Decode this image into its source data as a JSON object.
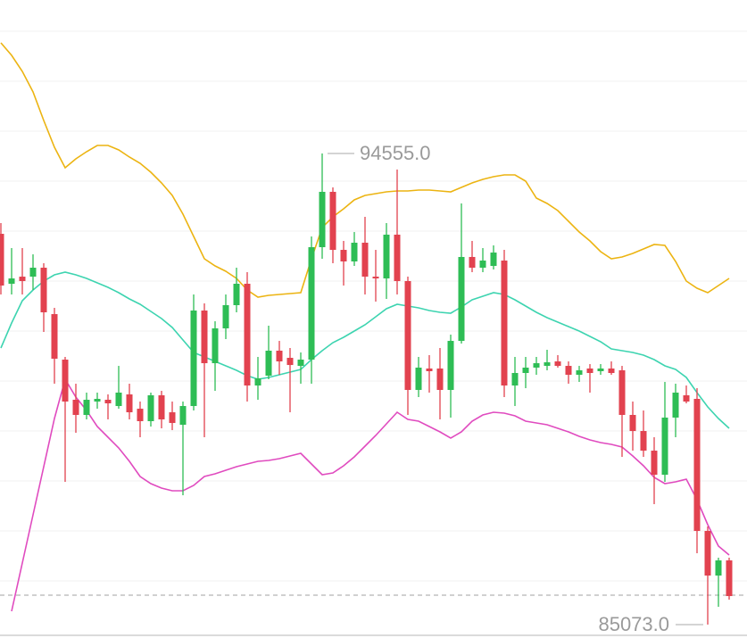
{
  "chart_data": {
    "type": "candlestick",
    "ylim": [
      84803,
      97644
    ],
    "up_color": "#2ebd55",
    "down_color": "#e2424f",
    "open": [
      92938,
      91933,
      92076,
      92076,
      92256,
      91322,
      90406,
      89598,
      89293,
      89562,
      89598,
      89472,
      89706,
      89418,
      89167,
      89688,
      89346,
      89095,
      89472,
      91394,
      90334,
      91035,
      91502,
      91933,
      89885,
      90083,
      90586,
      90442,
      90280,
      90406,
      92669,
      93783,
      92615,
      92382,
      92759,
      92076,
      92040,
      92921,
      91987,
      89796,
      90227,
      90227,
      89796,
      90783,
      92472,
      92256,
      92292,
      92400,
      89885,
      90137,
      90245,
      90280,
      90370,
      90280,
      90101,
      90227,
      90173,
      90227,
      90191,
      89293,
      88969,
      88574,
      88089,
      89239,
      89688,
      89616,
      86958,
      86060,
      86365
    ],
    "high": [
      93154,
      92651,
      92651,
      92525,
      92346,
      91448,
      90460,
      89921,
      89742,
      89742,
      89706,
      90280,
      89921,
      89562,
      89742,
      89778,
      89562,
      89562,
      91717,
      91538,
      91178,
      91717,
      92256,
      92166,
      90460,
      91089,
      90783,
      90640,
      90550,
      92885,
      94555,
      93872,
      92795,
      92974,
      93280,
      92615,
      93154,
      94232,
      92076,
      90460,
      90496,
      90640,
      90909,
      93549,
      92795,
      92651,
      92705,
      92615,
      90460,
      90460,
      90460,
      90604,
      90496,
      90370,
      90280,
      90316,
      90316,
      90370,
      90280,
      89562,
      89382,
      88844,
      89957,
      89921,
      89885,
      89831,
      87048,
      86419,
      86419
    ],
    "low": [
      91717,
      91717,
      91717,
      91807,
      90963,
      89921,
      87946,
      88933,
      89203,
      89418,
      89203,
      89418,
      89203,
      88844,
      89059,
      89023,
      88987,
      87676,
      89382,
      88844,
      89778,
      90819,
      91358,
      89562,
      89598,
      90011,
      90101,
      89346,
      89921,
      89921,
      92436,
      92346,
      91897,
      92292,
      91717,
      91574,
      91627,
      91717,
      89293,
      89652,
      89742,
      89203,
      89239,
      90729,
      92166,
      92166,
      92220,
      89652,
      89472,
      89831,
      90101,
      90191,
      90245,
      89921,
      89957,
      89742,
      90101,
      90101,
      88448,
      88574,
      88448,
      87497,
      87946,
      88844,
      89526,
      86509,
      85073,
      85431,
      85575
    ],
    "close": [
      91897,
      92040,
      91987,
      92256,
      91358,
      90424,
      89562,
      89293,
      89598,
      89616,
      89526,
      89742,
      89346,
      89167,
      89688,
      89203,
      89131,
      89472,
      91394,
      90334,
      91035,
      91502,
      91933,
      89885,
      90029,
      90586,
      90370,
      90298,
      90406,
      92669,
      93783,
      92615,
      92382,
      92759,
      92076,
      92040,
      92921,
      91987,
      89796,
      90245,
      90173,
      89796,
      90783,
      92472,
      92256,
      92400,
      92561,
      89885,
      90137,
      90245,
      90334,
      90352,
      90280,
      90101,
      90191,
      90137,
      90227,
      90137,
      89293,
      88969,
      88574,
      88089,
      89239,
      89742,
      89562,
      86958,
      86060,
      86365,
      85647
    ],
    "lines": [
      {
        "color": "#ecb412",
        "values": [
          96782,
          96531,
          96207,
          95794,
          95219,
          94681,
          94267,
          94447,
          94591,
          94717,
          94717,
          94627,
          94483,
          94357,
          94178,
          93962,
          93711,
          93334,
          92885,
          92436,
          92292,
          92184,
          92040,
          91807,
          91663,
          91699,
          91717,
          91735,
          91753,
          92436,
          93064,
          93280,
          93441,
          93621,
          93711,
          93747,
          93783,
          93801,
          93801,
          93819,
          93819,
          93801,
          93783,
          93872,
          93962,
          94034,
          94088,
          94124,
          94124,
          93998,
          93657,
          93549,
          93405,
          93190,
          92974,
          92795,
          92579,
          92436,
          92472,
          92543,
          92633,
          92723,
          92705,
          92382,
          91987,
          91843,
          91753,
          91897,
          92040
        ]
      },
      {
        "color": "#3dd4b0",
        "values": [
          90640,
          91142,
          91591,
          91807,
          91987,
          92112,
          92166,
          92112,
          92040,
          91951,
          91861,
          91753,
          91627,
          91520,
          91376,
          91232,
          91053,
          90801,
          90550,
          90460,
          90370,
          90280,
          90191,
          90083,
          90011,
          90047,
          90101,
          90155,
          90209,
          90406,
          90586,
          90747,
          90855,
          90981,
          91107,
          91268,
          91430,
          91520,
          91484,
          91448,
          91394,
          91358,
          91340,
          91466,
          91609,
          91681,
          91753,
          91717,
          91609,
          91484,
          91358,
          91250,
          91160,
          91071,
          90981,
          90873,
          90765,
          90622,
          90586,
          90550,
          90496,
          90406,
          90280,
          90209,
          90047,
          89742,
          89454,
          89221,
          89023
        ]
      },
      {
        "color": "#e04bbf",
        "values": [
          null,
          85341,
          86311,
          87281,
          88251,
          89221,
          90011,
          89652,
          89382,
          89059,
          88844,
          88628,
          88359,
          88053,
          87910,
          87820,
          87766,
          87766,
          87874,
          88053,
          88107,
          88179,
          88251,
          88305,
          88359,
          88377,
          88413,
          88466,
          88520,
          88305,
          88089,
          88125,
          88269,
          88448,
          88664,
          88880,
          89113,
          89346,
          89203,
          89167,
          89059,
          88951,
          88826,
          88951,
          89167,
          89293,
          89346,
          89329,
          89275,
          89167,
          89131,
          89095,
          89023,
          88951,
          88862,
          88790,
          88736,
          88700,
          88646,
          88466,
          88269,
          88035,
          87910,
          87946,
          87999,
          87586,
          87083,
          86652,
          86473
        ]
      }
    ],
    "price_line": 85665,
    "annotations": [
      {
        "value": 94555,
        "label": "94555.0"
      },
      {
        "value": 85073,
        "label": "85073.0"
      }
    ]
  }
}
